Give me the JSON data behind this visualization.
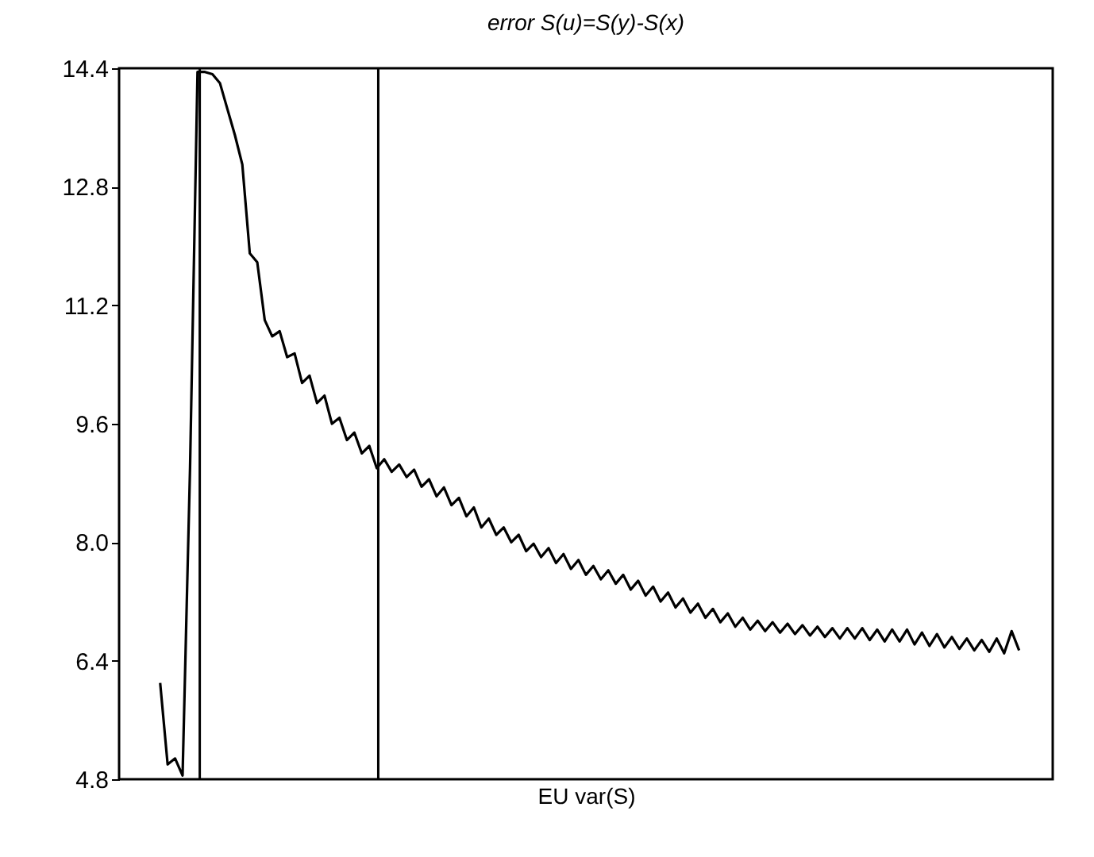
{
  "chart_data": {
    "type": "line",
    "title": "error S(u)=S(y)-S(x)",
    "xlabel": "EU var(S)",
    "tick_labels": "y",
    "grid": false,
    "ylim": [
      4.8,
      14.4
    ],
    "yticks": [
      4.8,
      6.4,
      {
        "value": 8,
        "label": "8.0"
      },
      9.6,
      11.2,
      12.8,
      14.4
    ],
    "categories": [
      null,
      null,
      null,
      null,
      null,
      null,
      null,
      null,
      null,
      null,
      null,
      null,
      null,
      null,
      null,
      null,
      null,
      null,
      null,
      null,
      null,
      null,
      null,
      null,
      null,
      null,
      null,
      null,
      null,
      null,
      null,
      null,
      null,
      null,
      null,
      null,
      null,
      null,
      null,
      null,
      null,
      null,
      null,
      null,
      null,
      null,
      null,
      null,
      null,
      null,
      null,
      null,
      null,
      null,
      null,
      null,
      null,
      null,
      null,
      null,
      null,
      null,
      null,
      null,
      null,
      null,
      null,
      null,
      null,
      null,
      null,
      null,
      null,
      null,
      null,
      null,
      null,
      null,
      null,
      null,
      null,
      null,
      null,
      null,
      null,
      null,
      null,
      null,
      null,
      null,
      null,
      null,
      null,
      null,
      null,
      null,
      null,
      null,
      null,
      null,
      null,
      null,
      null,
      null,
      null,
      null,
      null,
      null,
      null,
      null,
      null,
      null,
      null,
      null,
      null,
      null
    ],
    "series": [
      {
        "color": "#000000",
        "values": [
          6.1,
          5.0,
          5.08,
          4.85,
          9.0,
          14.35,
          14.35,
          14.32,
          14.2,
          13.85,
          13.5,
          13.1,
          11.9,
          11.78,
          11.0,
          10.78,
          10.85,
          10.5,
          10.55,
          10.15,
          10.25,
          9.88,
          9.98,
          9.6,
          9.68,
          9.38,
          9.48,
          9.2,
          9.3,
          9.0,
          9.12,
          8.95,
          9.05,
          8.88,
          8.98,
          8.75,
          8.85,
          8.62,
          8.74,
          8.5,
          8.6,
          8.35,
          8.47,
          8.2,
          8.32,
          8.1,
          8.2,
          8.0,
          8.1,
          7.88,
          7.98,
          7.8,
          7.92,
          7.72,
          7.84,
          7.64,
          7.76,
          7.56,
          7.68,
          7.5,
          7.62,
          7.44,
          7.56,
          7.36,
          7.48,
          7.28,
          7.4,
          7.2,
          7.32,
          7.12,
          7.24,
          7.05,
          7.17,
          6.98,
          7.1,
          6.92,
          7.04,
          6.86,
          6.98,
          6.82,
          6.94,
          6.8,
          6.92,
          6.78,
          6.9,
          6.76,
          6.88,
          6.74,
          6.86,
          6.72,
          6.84,
          6.7,
          6.84,
          6.7,
          6.84,
          6.68,
          6.82,
          6.66,
          6.82,
          6.66,
          6.82,
          6.62,
          6.78,
          6.6,
          6.76,
          6.58,
          6.72,
          6.56,
          6.7,
          6.54,
          6.68,
          6.52,
          6.7,
          6.5,
          6.8,
          6.54
        ]
      }
    ]
  }
}
